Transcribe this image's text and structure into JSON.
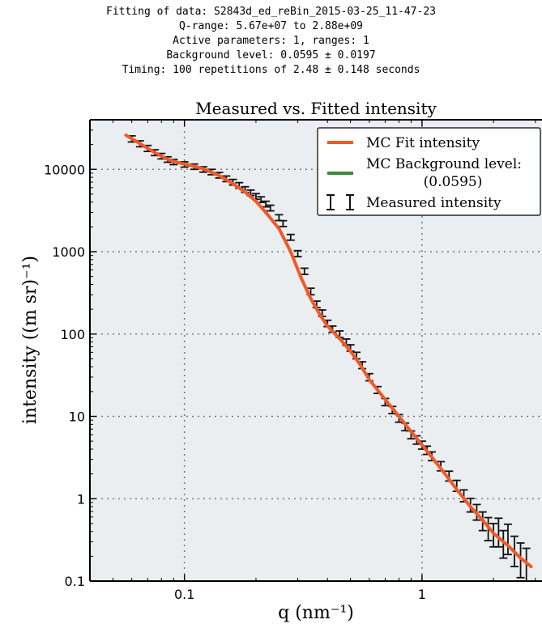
{
  "header": {
    "line1": "Fitting of data: S2843d_ed_reBin_2015-03-25_11-47-23",
    "line2": "Q-range: 5.67e+07 to 2.88e+09",
    "line3": "Active parameters: 1, ranges: 1",
    "line4": "Background level: 0.0595 ± 0.0197",
    "line5": "Timing: 100 repetitions of 2.48 ± 0.148 seconds"
  },
  "chart_data": {
    "type": "line",
    "title": "Measured vs. Fitted intensity",
    "xlabel": "q (nm⁻¹)",
    "ylabel": "intensity ((m sr)⁻¹)",
    "xscale": "log",
    "yscale": "log",
    "xlim": [
      0.04,
      3.2
    ],
    "ylim": [
      0.1,
      40000
    ],
    "grid": true,
    "legend_position": "top-right",
    "x_ticks": [
      {
        "value": 0.1,
        "label": "0.1"
      },
      {
        "value": 1,
        "label": "1"
      }
    ],
    "y_ticks": [
      {
        "value": 0.1,
        "label": "0.1"
      },
      {
        "value": 1,
        "label": "1"
      },
      {
        "value": 10,
        "label": "10"
      },
      {
        "value": 100,
        "label": "100"
      },
      {
        "value": 1000,
        "label": "1000"
      },
      {
        "value": 10000,
        "label": "10000"
      }
    ],
    "colors": {
      "fit": "#f05a28",
      "background": "#3a8a3a",
      "measured": "#111111",
      "plot_bg": "#eaeef1"
    },
    "legend": [
      {
        "label": "MC Fit intensity"
      },
      {
        "label": "MC Background level:\n(0.0595)"
      },
      {
        "label": "Measured intensity"
      }
    ],
    "series": [
      {
        "name": "MC Fit intensity",
        "x": [
          0.0567,
          0.065,
          0.075,
          0.085,
          0.095,
          0.105,
          0.12,
          0.14,
          0.16,
          0.18,
          0.2,
          0.22,
          0.25,
          0.28,
          0.31,
          0.34,
          0.37,
          0.4,
          0.45,
          0.5,
          0.55,
          0.6,
          0.7,
          0.8,
          0.9,
          1.0,
          1.1,
          1.25,
          1.4,
          1.6,
          1.8,
          2.0,
          2.3,
          2.6,
          2.88
        ],
        "y": [
          26000,
          20500,
          16000,
          13200,
          12000,
          11300,
          10200,
          8400,
          6700,
          5300,
          4100,
          3000,
          1900,
          1000,
          480,
          270,
          175,
          125,
          88,
          62,
          42,
          28,
          16,
          10,
          6.5,
          4.5,
          3.2,
          2.0,
          1.3,
          0.8,
          0.55,
          0.38,
          0.27,
          0.19,
          0.15
        ]
      },
      {
        "name": "MC Background level:\n(0.0595)",
        "x": [
          0.04,
          3.2
        ],
        "y": [
          0.0595,
          0.0595
        ]
      },
      {
        "name": "Measured intensity",
        "x": [
          0.06,
          0.065,
          0.07,
          0.075,
          0.08,
          0.085,
          0.09,
          0.1,
          0.11,
          0.12,
          0.13,
          0.14,
          0.15,
          0.16,
          0.17,
          0.18,
          0.19,
          0.2,
          0.21,
          0.22,
          0.23,
          0.25,
          0.26,
          0.28,
          0.3,
          0.32,
          0.34,
          0.36,
          0.38,
          0.4,
          0.42,
          0.45,
          0.48,
          0.5,
          0.53,
          0.56,
          0.6,
          0.65,
          0.7,
          0.75,
          0.8,
          0.85,
          0.9,
          0.95,
          1.0,
          1.05,
          1.1,
          1.2,
          1.3,
          1.4,
          1.5,
          1.6,
          1.7,
          1.8,
          1.9,
          2.0,
          2.1,
          2.2,
          2.3,
          2.45,
          2.6,
          2.75
        ],
        "y": [
          23500,
          20500,
          18000,
          16000,
          14500,
          13200,
          12300,
          11500,
          10800,
          10000,
          9300,
          8500,
          7700,
          7000,
          6400,
          5700,
          5200,
          4700,
          4300,
          3800,
          3400,
          2600,
          2200,
          1500,
          950,
          580,
          330,
          230,
          180,
          135,
          115,
          100,
          80,
          68,
          55,
          42,
          30,
          21,
          15,
          12,
          9.5,
          7.5,
          6.0,
          5.2,
          4.5,
          3.9,
          3.3,
          2.5,
          1.9,
          1.45,
          1.1,
          0.85,
          0.7,
          0.55,
          0.45,
          0.38,
          0.42,
          0.3,
          0.35,
          0.25,
          0.2,
          0.17
        ],
        "err": [
          2000,
          1700,
          1500,
          1300,
          1100,
          1000,
          900,
          850,
          800,
          750,
          700,
          650,
          600,
          550,
          500,
          450,
          400,
          370,
          340,
          300,
          270,
          210,
          180,
          120,
          80,
          50,
          30,
          21,
          16,
          12,
          10,
          9,
          7,
          6,
          5,
          4,
          3,
          2,
          1.5,
          1.2,
          1.0,
          0.8,
          0.65,
          0.6,
          0.5,
          0.45,
          0.4,
          0.32,
          0.26,
          0.22,
          0.18,
          0.16,
          0.15,
          0.14,
          0.14,
          0.12,
          0.16,
          0.11,
          0.14,
          0.1,
          0.09,
          0.08
        ]
      }
    ]
  }
}
